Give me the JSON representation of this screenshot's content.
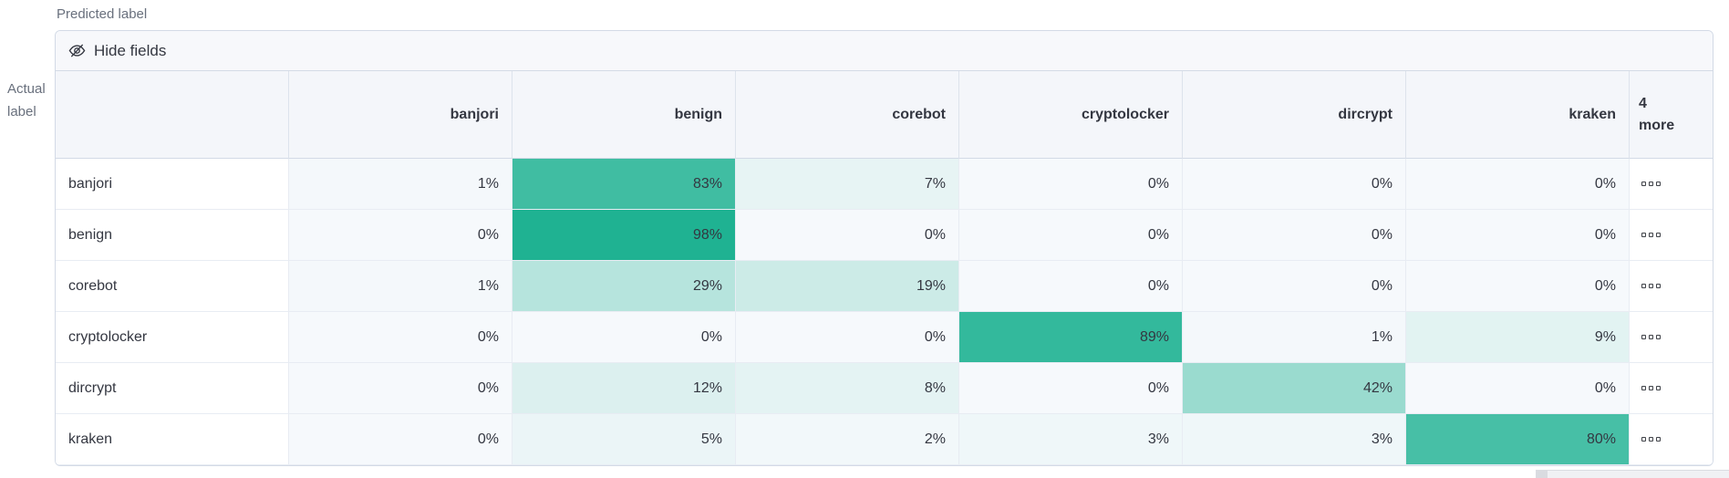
{
  "axes": {
    "predicted": "Predicted label",
    "actual": [
      "Actual",
      "label"
    ]
  },
  "toolbar": {
    "hide_fields_label": "Hide fields",
    "hide_fields_icon": "eye-slash-icon"
  },
  "row_actions_icon": "boxes-horizontal-icon",
  "chart_data": {
    "type": "heatmap",
    "title": "Confusion matrix: actual label vs predicted label",
    "xlabel": "Predicted label",
    "ylabel": "Actual label",
    "columns": [
      "banjori",
      "benign",
      "corebot",
      "cryptolocker",
      "dircrypt",
      "kraken"
    ],
    "more_column": [
      "4",
      "more"
    ],
    "rows": [
      {
        "label": "banjori",
        "values": [
          1,
          83,
          7,
          0,
          0,
          0
        ]
      },
      {
        "label": "benign",
        "values": [
          0,
          98,
          0,
          0,
          0,
          0
        ]
      },
      {
        "label": "corebot",
        "values": [
          1,
          29,
          19,
          0,
          0,
          0
        ]
      },
      {
        "label": "cryptolocker",
        "values": [
          0,
          0,
          0,
          89,
          1,
          9
        ]
      },
      {
        "label": "dircrypt",
        "values": [
          0,
          12,
          8,
          0,
          42,
          0
        ]
      },
      {
        "label": "kraken",
        "values": [
          0,
          5,
          2,
          3,
          3,
          80
        ]
      }
    ],
    "value_suffix": "%",
    "legend": false,
    "colors": {
      "cell_min": "#F6F9FC",
      "cell_max": "#1BB190",
      "header_bg": "#F4F6FA",
      "border": "#D3DAE6"
    }
  }
}
